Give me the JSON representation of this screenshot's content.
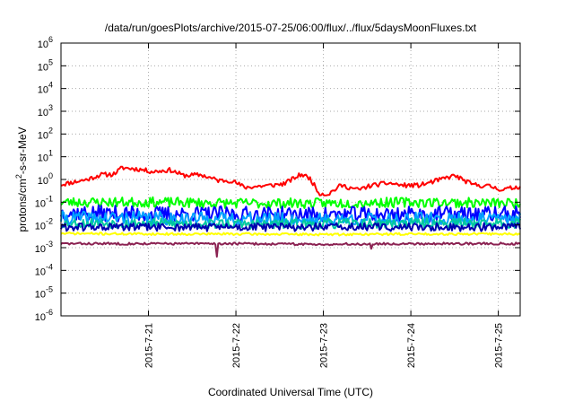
{
  "chart_data": {
    "type": "line",
    "title": "/data/run/goesPlots/archive/2015-07-25/06:00/flux/../flux/5daysMoonFluxes.txt",
    "xlabel": "Coordinated Universal Time (UTC)",
    "ylabel_parts": [
      "protons/cm",
      "2",
      "-s-sr-MeV"
    ],
    "y_log": true,
    "ylim_exp": [
      -6,
      6
    ],
    "y_base": "10",
    "y_tick_exps": [
      "-6",
      "-5",
      "-4",
      "-3",
      "-2",
      "-1",
      "0",
      "1",
      "2",
      "3",
      "4",
      "5",
      "6"
    ],
    "xlim_days": [
      0.0,
      5.25
    ],
    "x_tick_labels": [
      "2015-7-21",
      "2015-7-22",
      "2015-7-23",
      "2015-7-24",
      "2015-7-25"
    ],
    "x_tick_days": [
      1,
      2,
      3,
      4,
      5
    ],
    "grid": "dotted",
    "series": [
      {
        "color": "#ff0000",
        "base_points": [
          [
            0.0,
            0.6
          ],
          [
            0.3,
            1.0
          ],
          [
            0.45,
            1.6
          ],
          [
            0.6,
            1.7
          ],
          [
            0.7,
            3.3
          ],
          [
            0.9,
            2.8
          ],
          [
            1.05,
            2.2
          ],
          [
            1.25,
            2.6
          ],
          [
            1.4,
            1.5
          ],
          [
            1.6,
            1.6
          ],
          [
            1.8,
            0.9
          ],
          [
            1.95,
            0.9
          ],
          [
            2.1,
            0.45
          ],
          [
            2.4,
            0.55
          ],
          [
            2.55,
            0.65
          ],
          [
            2.75,
            1.7
          ],
          [
            2.85,
            1.1
          ],
          [
            2.95,
            0.25
          ],
          [
            3.05,
            0.22
          ],
          [
            3.2,
            0.55
          ],
          [
            3.4,
            0.35
          ],
          [
            3.55,
            0.55
          ],
          [
            3.75,
            0.7
          ],
          [
            3.9,
            0.55
          ],
          [
            4.1,
            0.55
          ],
          [
            4.3,
            0.9
          ],
          [
            4.5,
            1.5
          ],
          [
            4.7,
            0.6
          ],
          [
            4.9,
            0.5
          ],
          [
            5.05,
            0.35
          ],
          [
            5.25,
            0.5
          ]
        ],
        "noise": 0.1,
        "seed": 11
      },
      {
        "color": "#00ff00",
        "base_points": [
          [
            0,
            0.1
          ],
          [
            1,
            0.1
          ],
          [
            2,
            0.09
          ],
          [
            3,
            0.09
          ],
          [
            4,
            0.1
          ],
          [
            5.25,
            0.09
          ]
        ],
        "noise": 0.22,
        "seed": 23
      },
      {
        "color": "#0000ff",
        "base_points": [
          [
            0,
            0.035
          ],
          [
            1,
            0.03
          ],
          [
            2,
            0.03
          ],
          [
            3,
            0.028
          ],
          [
            4,
            0.03
          ],
          [
            5.25,
            0.03
          ]
        ],
        "noise": 0.35,
        "seed": 37
      },
      {
        "color": "#00a0ff",
        "base_points": [
          [
            0,
            0.02
          ],
          [
            1,
            0.02
          ],
          [
            2,
            0.018
          ],
          [
            3,
            0.017
          ],
          [
            4,
            0.018
          ],
          [
            5.25,
            0.018
          ]
        ],
        "noise": 0.3,
        "seed": 41
      },
      {
        "color": "#00c8a0",
        "base_points": [
          [
            0,
            0.012
          ],
          [
            1,
            0.012
          ],
          [
            2,
            0.011
          ],
          [
            3,
            0.011
          ],
          [
            4,
            0.012
          ],
          [
            5.25,
            0.012
          ]
        ],
        "noise": 0.22,
        "seed": 53
      },
      {
        "color": "#0000b0",
        "base_points": [
          [
            0,
            0.008
          ],
          [
            1,
            0.008
          ],
          [
            2,
            0.008
          ],
          [
            3,
            0.008
          ],
          [
            4,
            0.008
          ],
          [
            5.25,
            0.008
          ]
        ],
        "noise": 0.18,
        "seed": 61
      },
      {
        "color": "#ffff00",
        "base_points": [
          [
            0,
            0.0042
          ],
          [
            1,
            0.004
          ],
          [
            2,
            0.004
          ],
          [
            3,
            0.0038
          ],
          [
            4,
            0.004
          ],
          [
            5.25,
            0.004
          ]
        ],
        "noise": 0.05,
        "seed": 71
      },
      {
        "color": "#8b2252",
        "base_points": [
          [
            0,
            0.0015
          ],
          [
            1,
            0.0015
          ],
          [
            2,
            0.0015
          ],
          [
            3,
            0.0014
          ],
          [
            4,
            0.0015
          ],
          [
            5.25,
            0.0015
          ]
        ],
        "noise": 0.05,
        "seed": 83,
        "dips": [
          [
            1.78,
            0.0004
          ],
          [
            3.55,
            0.0009
          ]
        ]
      }
    ]
  }
}
